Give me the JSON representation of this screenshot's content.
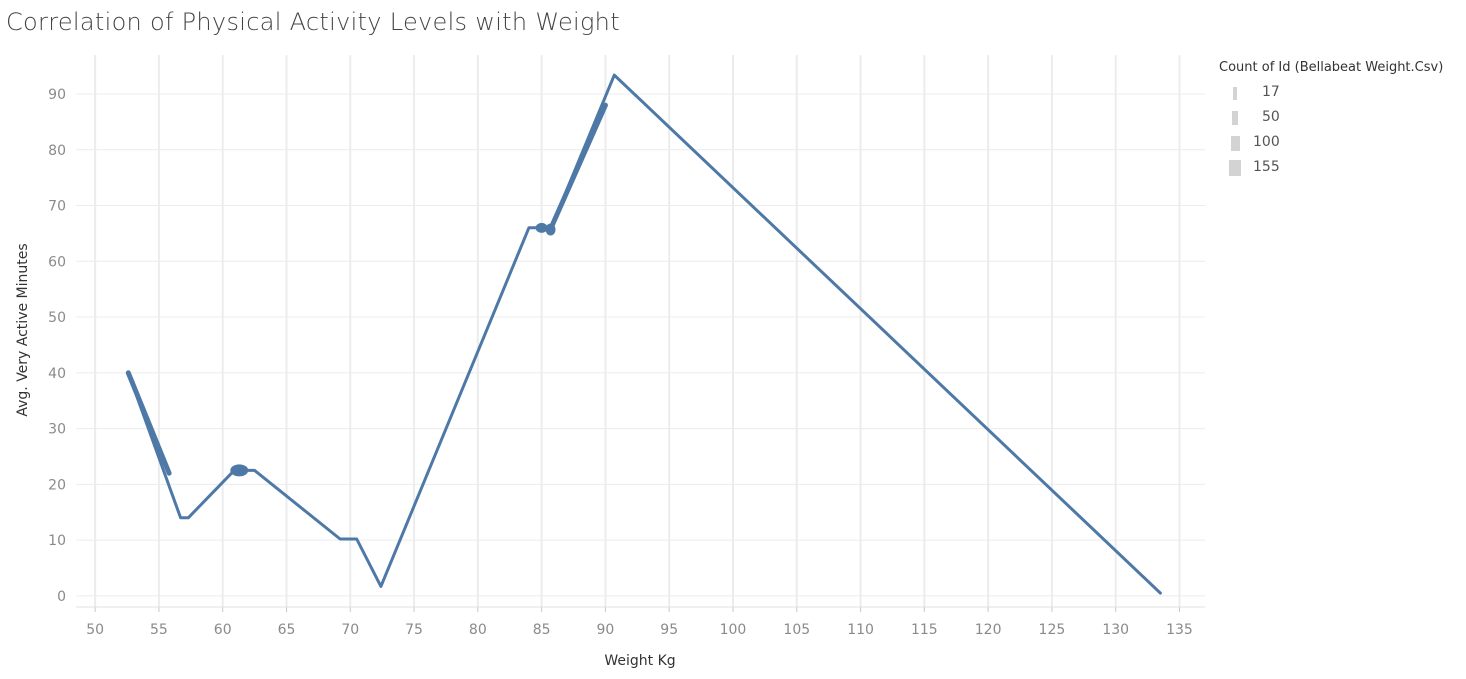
{
  "title": "Correlation of Physical Activity Levels with Weight",
  "colors": {
    "line": "#4e79a7",
    "grid": "#ececec",
    "tick_text": "#8a8a8a",
    "legend_swatch": "#d3d3d3"
  },
  "legend": {
    "title": "Count of Id (Bellabeat Weight.Csv)",
    "items": [
      {
        "label": "17",
        "count": 17
      },
      {
        "label": "50",
        "count": 50
      },
      {
        "label": "100",
        "count": 100
      },
      {
        "label": "155",
        "count": 155
      }
    ]
  },
  "chart_data": {
    "type": "line",
    "title": "Correlation of Physical Activity Levels with Weight",
    "xlabel": "Weight Kg",
    "ylabel": "Avg. Very Active Minutes",
    "xlim": [
      48.5,
      137
    ],
    "ylim": [
      -2,
      97
    ],
    "xticks": [
      50,
      55,
      60,
      65,
      70,
      75,
      80,
      85,
      90,
      95,
      100,
      105,
      110,
      115,
      120,
      125,
      130,
      135
    ],
    "yticks": [
      0,
      10,
      20,
      30,
      40,
      50,
      60,
      70,
      80,
      90
    ],
    "grid": true,
    "legend_position": "top-right",
    "series": [
      {
        "x": [
          52.6,
          56.7,
          57.3,
          60.9,
          61.3,
          61.7,
          62.5,
          69.2,
          70.5,
          72.4,
          84.0,
          85.0,
          85.5,
          85.7,
          90.7,
          133.5
        ],
        "y": [
          40.0,
          14.0,
          14.0,
          22.5,
          22.5,
          22.5,
          22.5,
          10.2,
          10.2,
          1.7,
          66.0,
          66.0,
          65.5,
          65.8,
          93.4,
          0.5
        ]
      }
    ],
    "marks": [
      {
        "x": 52.7,
        "y": 38.0,
        "note": "thick segment near start"
      },
      {
        "x": 61.3,
        "y": 22.5
      },
      {
        "x": 85.0,
        "y": 66.0
      },
      {
        "x": 85.7,
        "y": 65.7
      }
    ]
  }
}
